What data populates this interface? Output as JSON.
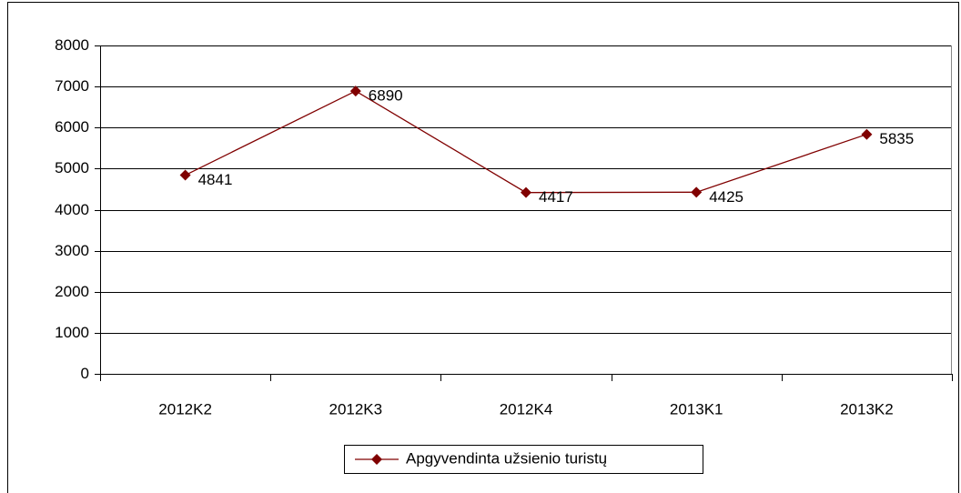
{
  "chart_data": {
    "type": "line",
    "categories": [
      "2012K2",
      "2012K3",
      "2012K4",
      "2013K1",
      "2013K2"
    ],
    "series": [
      {
        "name": "Apgyvendinta užsienio turistų",
        "color": "#800000",
        "values": [
          4841,
          6890,
          4417,
          4425,
          5835
        ]
      }
    ],
    "ylim": [
      0,
      8000
    ],
    "yticks": [
      0,
      1000,
      2000,
      3000,
      4000,
      5000,
      6000,
      7000,
      8000
    ],
    "grid": true,
    "legend": "bottom",
    "data_labels": true
  }
}
